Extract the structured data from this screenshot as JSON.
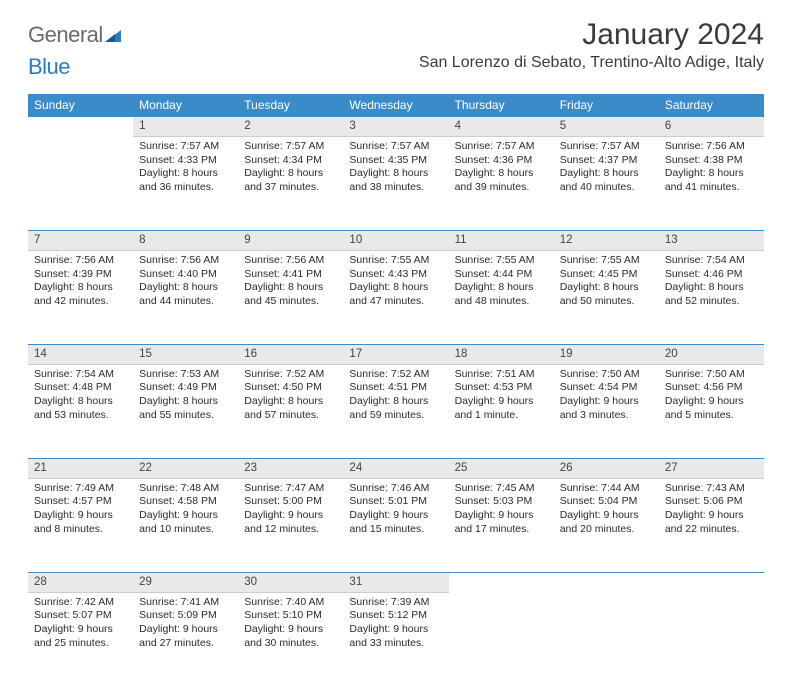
{
  "logo": {
    "part1": "General",
    "part2": "Blue"
  },
  "title": "January 2024",
  "location": "San Lorenzo di Sebato, Trentino-Alto Adige, Italy",
  "colors": {
    "header_bg": "#3b8bc8",
    "header_text": "#ffffff",
    "daynum_bg": "#e9e9e9",
    "daynum_border_top": "#3b8bc8",
    "text": "#2b2b2b",
    "logo_gray": "#6b6b6b",
    "logo_blue": "#2e7cc0"
  },
  "typography": {
    "title_fontsize": 30,
    "location_fontsize": 16,
    "weekday_fontsize": 12,
    "daynum_fontsize": 11.5,
    "body_fontsize": 10.5
  },
  "weekdays": [
    "Sunday",
    "Monday",
    "Tuesday",
    "Wednesday",
    "Thursday",
    "Friday",
    "Saturday"
  ],
  "weeks": [
    [
      null,
      {
        "n": "1",
        "sr": "Sunrise: 7:57 AM",
        "ss": "Sunset: 4:33 PM",
        "d1": "Daylight: 8 hours",
        "d2": "and 36 minutes."
      },
      {
        "n": "2",
        "sr": "Sunrise: 7:57 AM",
        "ss": "Sunset: 4:34 PM",
        "d1": "Daylight: 8 hours",
        "d2": "and 37 minutes."
      },
      {
        "n": "3",
        "sr": "Sunrise: 7:57 AM",
        "ss": "Sunset: 4:35 PM",
        "d1": "Daylight: 8 hours",
        "d2": "and 38 minutes."
      },
      {
        "n": "4",
        "sr": "Sunrise: 7:57 AM",
        "ss": "Sunset: 4:36 PM",
        "d1": "Daylight: 8 hours",
        "d2": "and 39 minutes."
      },
      {
        "n": "5",
        "sr": "Sunrise: 7:57 AM",
        "ss": "Sunset: 4:37 PM",
        "d1": "Daylight: 8 hours",
        "d2": "and 40 minutes."
      },
      {
        "n": "6",
        "sr": "Sunrise: 7:56 AM",
        "ss": "Sunset: 4:38 PM",
        "d1": "Daylight: 8 hours",
        "d2": "and 41 minutes."
      }
    ],
    [
      {
        "n": "7",
        "sr": "Sunrise: 7:56 AM",
        "ss": "Sunset: 4:39 PM",
        "d1": "Daylight: 8 hours",
        "d2": "and 42 minutes."
      },
      {
        "n": "8",
        "sr": "Sunrise: 7:56 AM",
        "ss": "Sunset: 4:40 PM",
        "d1": "Daylight: 8 hours",
        "d2": "and 44 minutes."
      },
      {
        "n": "9",
        "sr": "Sunrise: 7:56 AM",
        "ss": "Sunset: 4:41 PM",
        "d1": "Daylight: 8 hours",
        "d2": "and 45 minutes."
      },
      {
        "n": "10",
        "sr": "Sunrise: 7:55 AM",
        "ss": "Sunset: 4:43 PM",
        "d1": "Daylight: 8 hours",
        "d2": "and 47 minutes."
      },
      {
        "n": "11",
        "sr": "Sunrise: 7:55 AM",
        "ss": "Sunset: 4:44 PM",
        "d1": "Daylight: 8 hours",
        "d2": "and 48 minutes."
      },
      {
        "n": "12",
        "sr": "Sunrise: 7:55 AM",
        "ss": "Sunset: 4:45 PM",
        "d1": "Daylight: 8 hours",
        "d2": "and 50 minutes."
      },
      {
        "n": "13",
        "sr": "Sunrise: 7:54 AM",
        "ss": "Sunset: 4:46 PM",
        "d1": "Daylight: 8 hours",
        "d2": "and 52 minutes."
      }
    ],
    [
      {
        "n": "14",
        "sr": "Sunrise: 7:54 AM",
        "ss": "Sunset: 4:48 PM",
        "d1": "Daylight: 8 hours",
        "d2": "and 53 minutes."
      },
      {
        "n": "15",
        "sr": "Sunrise: 7:53 AM",
        "ss": "Sunset: 4:49 PM",
        "d1": "Daylight: 8 hours",
        "d2": "and 55 minutes."
      },
      {
        "n": "16",
        "sr": "Sunrise: 7:52 AM",
        "ss": "Sunset: 4:50 PM",
        "d1": "Daylight: 8 hours",
        "d2": "and 57 minutes."
      },
      {
        "n": "17",
        "sr": "Sunrise: 7:52 AM",
        "ss": "Sunset: 4:51 PM",
        "d1": "Daylight: 8 hours",
        "d2": "and 59 minutes."
      },
      {
        "n": "18",
        "sr": "Sunrise: 7:51 AM",
        "ss": "Sunset: 4:53 PM",
        "d1": "Daylight: 9 hours",
        "d2": "and 1 minute."
      },
      {
        "n": "19",
        "sr": "Sunrise: 7:50 AM",
        "ss": "Sunset: 4:54 PM",
        "d1": "Daylight: 9 hours",
        "d2": "and 3 minutes."
      },
      {
        "n": "20",
        "sr": "Sunrise: 7:50 AM",
        "ss": "Sunset: 4:56 PM",
        "d1": "Daylight: 9 hours",
        "d2": "and 5 minutes."
      }
    ],
    [
      {
        "n": "21",
        "sr": "Sunrise: 7:49 AM",
        "ss": "Sunset: 4:57 PM",
        "d1": "Daylight: 9 hours",
        "d2": "and 8 minutes."
      },
      {
        "n": "22",
        "sr": "Sunrise: 7:48 AM",
        "ss": "Sunset: 4:58 PM",
        "d1": "Daylight: 9 hours",
        "d2": "and 10 minutes."
      },
      {
        "n": "23",
        "sr": "Sunrise: 7:47 AM",
        "ss": "Sunset: 5:00 PM",
        "d1": "Daylight: 9 hours",
        "d2": "and 12 minutes."
      },
      {
        "n": "24",
        "sr": "Sunrise: 7:46 AM",
        "ss": "Sunset: 5:01 PM",
        "d1": "Daylight: 9 hours",
        "d2": "and 15 minutes."
      },
      {
        "n": "25",
        "sr": "Sunrise: 7:45 AM",
        "ss": "Sunset: 5:03 PM",
        "d1": "Daylight: 9 hours",
        "d2": "and 17 minutes."
      },
      {
        "n": "26",
        "sr": "Sunrise: 7:44 AM",
        "ss": "Sunset: 5:04 PM",
        "d1": "Daylight: 9 hours",
        "d2": "and 20 minutes."
      },
      {
        "n": "27",
        "sr": "Sunrise: 7:43 AM",
        "ss": "Sunset: 5:06 PM",
        "d1": "Daylight: 9 hours",
        "d2": "and 22 minutes."
      }
    ],
    [
      {
        "n": "28",
        "sr": "Sunrise: 7:42 AM",
        "ss": "Sunset: 5:07 PM",
        "d1": "Daylight: 9 hours",
        "d2": "and 25 minutes."
      },
      {
        "n": "29",
        "sr": "Sunrise: 7:41 AM",
        "ss": "Sunset: 5:09 PM",
        "d1": "Daylight: 9 hours",
        "d2": "and 27 minutes."
      },
      {
        "n": "30",
        "sr": "Sunrise: 7:40 AM",
        "ss": "Sunset: 5:10 PM",
        "d1": "Daylight: 9 hours",
        "d2": "and 30 minutes."
      },
      {
        "n": "31",
        "sr": "Sunrise: 7:39 AM",
        "ss": "Sunset: 5:12 PM",
        "d1": "Daylight: 9 hours",
        "d2": "and 33 minutes."
      },
      null,
      null,
      null
    ]
  ]
}
